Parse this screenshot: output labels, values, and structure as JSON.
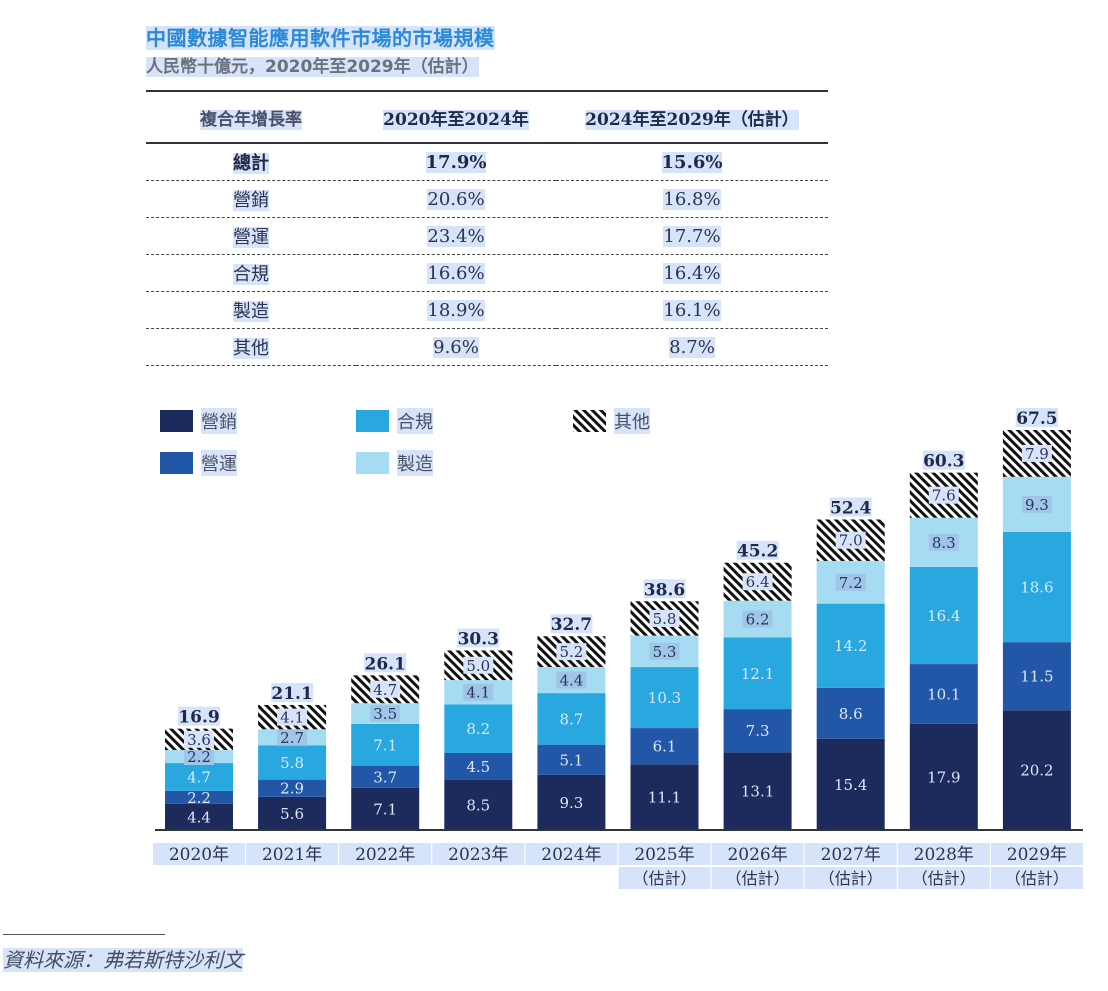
{
  "title": "中國數據智能應用軟件市場的市場規模",
  "subtitle": "人民幣十億元，2020年至2029年（估計）",
  "cagr_table": {
    "headers": [
      "複合年增長率",
      "2020年至2024年",
      "2024年至2029年（估計）"
    ],
    "rows": [
      {
        "label": "總計",
        "v1": "17.9%",
        "v2": "15.6%"
      },
      {
        "label": "營銷",
        "v1": "20.6%",
        "v2": "16.8%"
      },
      {
        "label": "營運",
        "v1": "23.4%",
        "v2": "17.7%"
      },
      {
        "label": "合規",
        "v1": "16.6%",
        "v2": "16.4%"
      },
      {
        "label": "製造",
        "v1": "18.9%",
        "v2": "16.1%"
      },
      {
        "label": "其他",
        "v1": "9.6%",
        "v2": "8.7%"
      }
    ]
  },
  "colors": {
    "marketing": "#1c2a5c",
    "operations": "#2257a8",
    "compliance": "#29a8e0",
    "manufacturing": "#a6dcf2",
    "others": "hatch"
  },
  "chart_data": {
    "type": "bar",
    "stacked": true,
    "title": "中國數據智能應用軟件市場的市場規模",
    "subtitle": "人民幣十億元，2020年至2029年（估計）",
    "xlabel": "",
    "ylabel": "",
    "ylim": [
      0,
      67.5
    ],
    "grid": false,
    "legend_position": "top-left",
    "categories": [
      "2020年",
      "2021年",
      "2022年",
      "2023年",
      "2024年",
      "2025年",
      "2026年",
      "2027年",
      "2028年",
      "2029年"
    ],
    "category_sublabels": [
      "",
      "",
      "",
      "",
      "",
      "（估計）",
      "（估計）",
      "（估計）",
      "（估計）",
      "（估計）"
    ],
    "series": [
      {
        "name": "營銷",
        "key": "marketing",
        "values": [
          4.4,
          5.6,
          7.1,
          8.5,
          9.3,
          11.1,
          13.1,
          15.4,
          17.9,
          20.2
        ]
      },
      {
        "name": "營運",
        "key": "operations",
        "values": [
          2.2,
          2.9,
          3.7,
          4.5,
          5.1,
          6.1,
          7.3,
          8.6,
          10.1,
          11.5
        ]
      },
      {
        "name": "合規",
        "key": "compliance",
        "values": [
          4.7,
          5.8,
          7.1,
          8.2,
          8.7,
          10.3,
          12.1,
          14.2,
          16.4,
          18.6
        ]
      },
      {
        "name": "製造",
        "key": "manufacturing",
        "values": [
          2.2,
          2.7,
          3.5,
          4.1,
          4.4,
          5.3,
          6.2,
          7.2,
          8.3,
          9.3
        ]
      },
      {
        "name": "其他",
        "key": "others",
        "values": [
          3.6,
          4.1,
          4.7,
          5.0,
          5.2,
          5.8,
          6.4,
          7.0,
          7.6,
          7.9
        ]
      }
    ],
    "totals": [
      16.9,
      21.1,
      26.1,
      30.3,
      32.7,
      38.6,
      45.2,
      52.4,
      60.3,
      67.5
    ]
  },
  "legend": [
    {
      "name": "營銷",
      "key": "marketing"
    },
    {
      "name": "合規",
      "key": "compliance"
    },
    {
      "name": "其他",
      "key": "others"
    },
    {
      "name": "營運",
      "key": "operations"
    },
    {
      "name": "製造",
      "key": "manufacturing"
    }
  ],
  "source": "資料來源：弗若斯特沙利文"
}
